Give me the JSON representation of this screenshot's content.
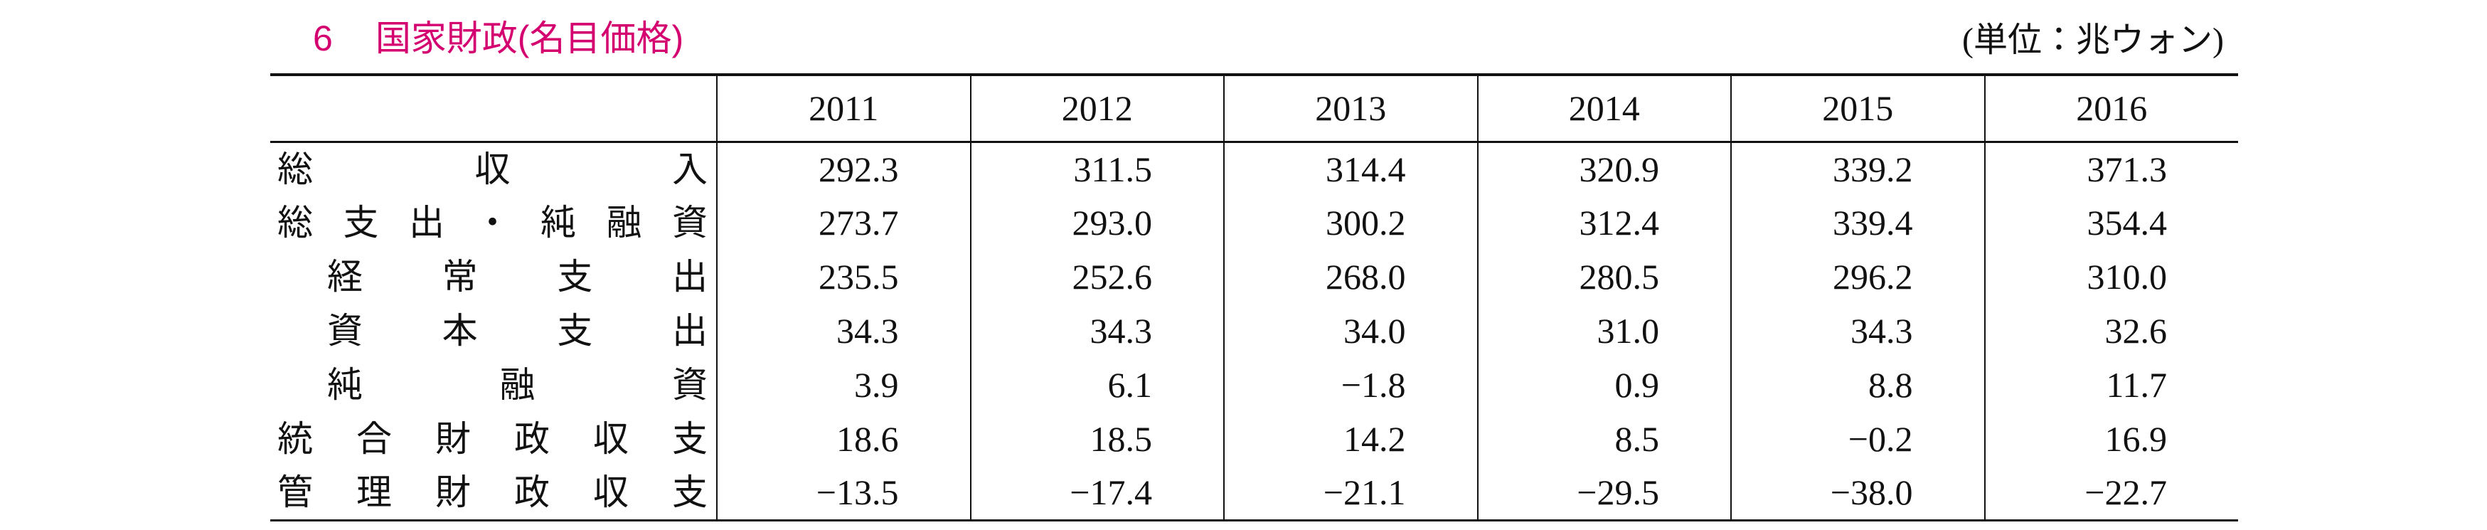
{
  "header": {
    "number": "6",
    "title": "国家財政(名目価格)",
    "unit": "(単位：兆ウォン)"
  },
  "table": {
    "columns": [
      "2011",
      "2012",
      "2013",
      "2014",
      "2015",
      "2016"
    ],
    "rows": [
      {
        "label": "総収入",
        "indent": false,
        "values": [
          "292.3",
          "311.5",
          "314.4",
          "320.9",
          "339.2",
          "371.3"
        ]
      },
      {
        "label": "総支出・純融資",
        "indent": false,
        "values": [
          "273.7",
          "293.0",
          "300.2",
          "312.4",
          "339.4",
          "354.4"
        ]
      },
      {
        "label": "経常支出",
        "indent": true,
        "values": [
          "235.5",
          "252.6",
          "268.0",
          "280.5",
          "296.2",
          "310.0"
        ]
      },
      {
        "label": "資本支出",
        "indent": true,
        "values": [
          "34.3",
          "34.3",
          "34.0",
          "31.0",
          "34.3",
          "32.6"
        ]
      },
      {
        "label": "純融資",
        "indent": true,
        "values": [
          "3.9",
          "6.1",
          "−1.8",
          "0.9",
          "8.8",
          "11.7"
        ]
      },
      {
        "label": "統合財政収支",
        "indent": false,
        "values": [
          "18.6",
          "18.5",
          "14.2",
          "8.5",
          "−0.2",
          "16.9"
        ]
      },
      {
        "label": "管理財政収支",
        "indent": false,
        "values": [
          "−13.5",
          "−17.4",
          "−21.1",
          "−29.5",
          "−38.0",
          "−22.7"
        ]
      }
    ]
  }
}
